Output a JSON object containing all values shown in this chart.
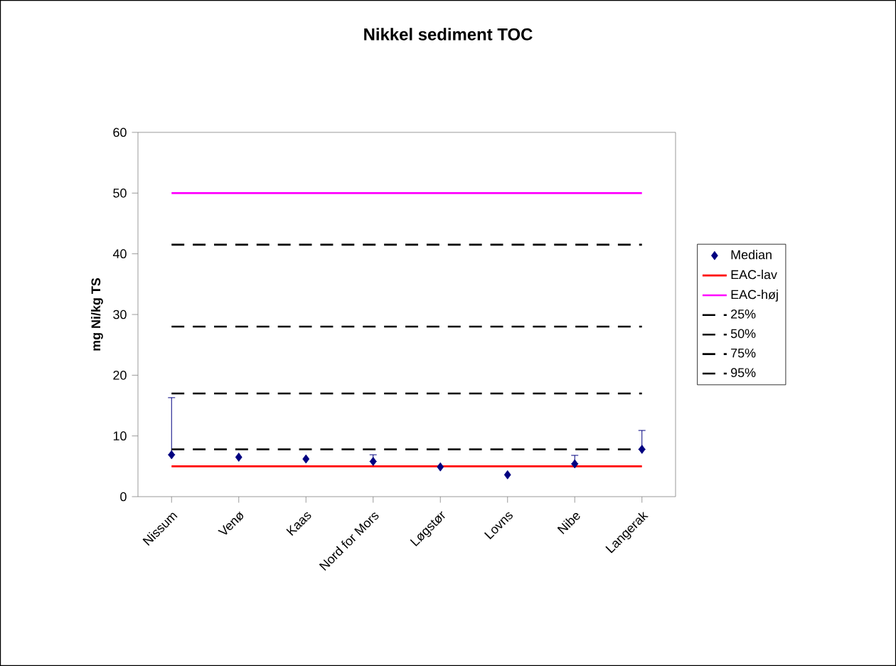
{
  "chart_data": {
    "type": "scatter",
    "title": "Nikkel sediment TOC",
    "ylabel": "mg Ni/kg TS",
    "categories": [
      "Nissum",
      "Venø",
      "Kaas",
      "Nord for Mors",
      "Løgstør",
      "Lovns",
      "Nibe",
      "Langerak"
    ],
    "series": [
      {
        "name": "Median",
        "marker": "diamond",
        "color": "#000080",
        "values": [
          6.9,
          6.5,
          6.2,
          5.8,
          4.9,
          3.6,
          5.4,
          7.8
        ],
        "errors": [
          [
            6.9,
            16.3
          ],
          null,
          null,
          [
            5.8,
            6.9
          ],
          null,
          null,
          [
            5.4,
            6.8
          ],
          [
            7.8,
            10.9
          ]
        ]
      },
      {
        "name": "EAC-lav",
        "type": "line",
        "line_style": "solid",
        "color": "#ff0000",
        "values": [
          5,
          5,
          5,
          5,
          5,
          5,
          5,
          5
        ]
      },
      {
        "name": "EAC-høj",
        "type": "line",
        "line_style": "solid",
        "color": "#ff00ff",
        "values": [
          50,
          50,
          50,
          50,
          50,
          50,
          50,
          50
        ]
      },
      {
        "name": "25%",
        "type": "line",
        "line_style": "dashed",
        "color": "#000000",
        "values": [
          7.8,
          7.8,
          7.8,
          7.8,
          7.8,
          7.8,
          7.8,
          7.8
        ]
      },
      {
        "name": "50%",
        "type": "line",
        "line_style": "dashed",
        "color": "#000000",
        "values": [
          17,
          17,
          17,
          17,
          17,
          17,
          17,
          17
        ]
      },
      {
        "name": "75%",
        "type": "line",
        "line_style": "dashed",
        "color": "#000000",
        "values": [
          28,
          28,
          28,
          28,
          28,
          28,
          28,
          28
        ]
      },
      {
        "name": "95%",
        "type": "line",
        "line_style": "dashed",
        "color": "#000000",
        "values": [
          41.5,
          41.5,
          41.5,
          41.5,
          41.5,
          41.5,
          41.5,
          41.5
        ]
      }
    ],
    "ylim": [
      0,
      60
    ],
    "yticks": [
      0,
      10,
      20,
      30,
      40,
      50,
      60
    ],
    "grid": false,
    "legend": "right"
  }
}
